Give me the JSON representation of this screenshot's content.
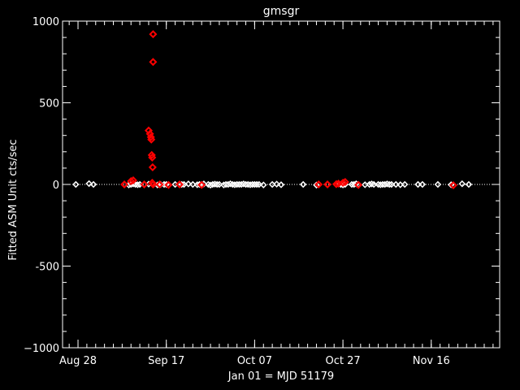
{
  "chart_data": {
    "type": "scatter",
    "title": "gmsgr",
    "xlabel": "Jan 01 = MJD 51179",
    "ylabel": "Fitted ASM Unit cts/sec",
    "ylim": [
      -1000,
      1000
    ],
    "xlim": [
      51414.5,
      51513.5
    ],
    "grid": false,
    "legend": "none",
    "colors": {
      "background": "#000000",
      "axes": "#ffffff",
      "points_white": "#ffffff",
      "points_red": "#ff0000",
      "zero_line": "#ffffff"
    },
    "y_ticks": [
      {
        "value": 1000,
        "label": "1000"
      },
      {
        "value": 500,
        "label": "500"
      },
      {
        "value": 0,
        "label": "0"
      },
      {
        "value": -500,
        "label": "-500"
      },
      {
        "value": -1000,
        "label": "−1000"
      }
    ],
    "x_ticks": [
      {
        "value": 51418,
        "label": "Aug 28"
      },
      {
        "value": 51438,
        "label": "Sep 17"
      },
      {
        "value": 51458,
        "label": "Oct 07"
      },
      {
        "value": 51478,
        "label": "Oct 27"
      },
      {
        "value": 51498,
        "label": "Nov 16"
      }
    ],
    "x_minor_step": 2,
    "y_minor_step": 100,
    "zero_line": 0,
    "series": [
      {
        "color": "white",
        "x": [
          51417.5,
          51420.5,
          51421.5,
          51428.5,
          51429.5,
          51430.0,
          51430.5,
          51431.0,
          51431.5,
          51432.0,
          51433.0,
          51434.0,
          51435.0,
          51436.0,
          51436.7,
          51437.5,
          51438.0,
          51440.0,
          51441.5,
          51442.0,
          51443.0,
          51444.0,
          51445.0,
          51445.5,
          51446.0,
          51446.5,
          51447.5,
          51448.0,
          51448.5,
          51449.0,
          51449.5,
          51450.0,
          51451.0,
          51451.5,
          51452.0,
          51452.5,
          51453.0,
          51453.5,
          51454.0,
          51454.5,
          51455.0,
          51455.5,
          51456.0,
          51456.5,
          51457.0,
          51457.5,
          51458.0,
          51458.5,
          51459.0,
          51460.0,
          51462.0,
          51463.0,
          51464.0,
          51469.0,
          51472.0,
          51476.5,
          51477.0,
          51477.5,
          51478.0,
          51478.5,
          51480.0,
          51480.5,
          51481.0,
          51481.5,
          51483.0,
          51484.0,
          51484.5,
          51485.0,
          51486.0,
          51486.5,
          51487.0,
          51487.5,
          51488.0,
          51488.5,
          51489.0,
          51490.0,
          51491.0,
          51492.0,
          51495.0,
          51496.0,
          51499.5,
          51502.5,
          51505.0,
          51506.5
        ],
        "y": [
          0,
          5,
          0,
          0,
          -3,
          0,
          3,
          0,
          -2,
          0,
          0,
          2,
          0,
          -3,
          0,
          0,
          0,
          0,
          0,
          0,
          3,
          0,
          -2,
          0,
          0,
          3,
          0,
          -4,
          0,
          2,
          0,
          0,
          -3,
          0,
          0,
          4,
          0,
          -2,
          0,
          0,
          0,
          3,
          0,
          0,
          -2,
          0,
          0,
          0,
          0,
          -3,
          0,
          2,
          -2,
          0,
          -4,
          0,
          4,
          0,
          -3,
          0,
          0,
          0,
          4,
          0,
          -2,
          0,
          3,
          0,
          0,
          -2,
          0,
          0,
          3,
          0,
          0,
          0,
          -2,
          0,
          0,
          0,
          0,
          -2,
          4,
          0
        ]
      },
      {
        "color": "red",
        "x": [
          51428.5,
          51430.0,
          51430.5,
          51433.0,
          51434.0,
          51434.3,
          51434.5,
          51434.6,
          51434.7,
          51434.8,
          51434.9,
          51435.0,
          51435.0,
          51434.8,
          51435.0,
          51436.5,
          51438.5,
          51441.0,
          51446.0,
          51472.5,
          51474.5,
          51476.5,
          51477.0,
          51478.0,
          51478.5,
          51481.5,
          51503.0
        ],
        "y": [
          0,
          20,
          25,
          0,
          330,
          310,
          290,
          275,
          180,
          165,
          105,
          750,
          920,
          10,
          0,
          0,
          -3,
          0,
          -3,
          0,
          0,
          2,
          5,
          10,
          15,
          -3,
          -5
        ]
      }
    ]
  }
}
